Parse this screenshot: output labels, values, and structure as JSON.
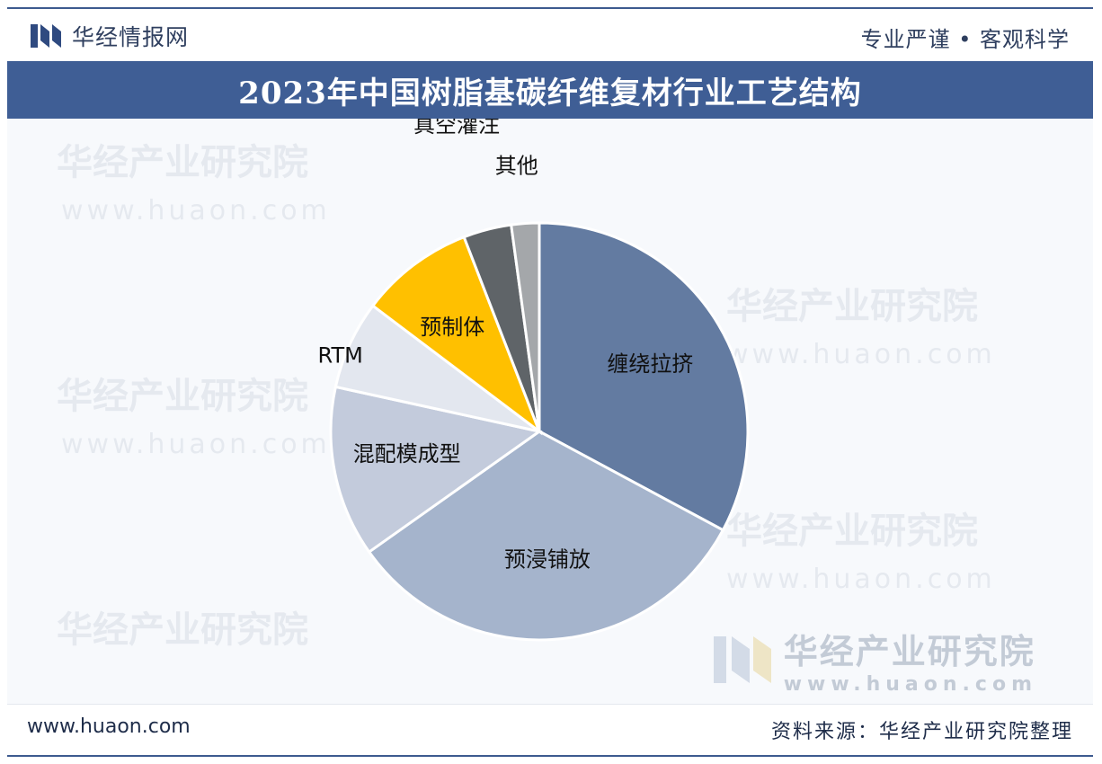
{
  "header": {
    "brand": "华经情报网",
    "slogan": "专业严谨 • 客观科学"
  },
  "title": "2023年中国树脂基碳纤维复材行业工艺结构",
  "watermark": {
    "name": "华经产业研究院",
    "url": "www.huaon.com"
  },
  "footer": {
    "url": "www.huaon.com",
    "source": "资料来源：华经产业研究院整理"
  },
  "colors": {
    "title_band": "#3f5e95",
    "slice_1": "#637ba1",
    "slice_2": "#a5b4cc",
    "slice_3": "#c3cbdc",
    "slice_4": "#e3e7ef",
    "slice_5": "#ffc000",
    "slice_6": "#5f6468",
    "slice_7": "#a4a7aa"
  },
  "chart_data": {
    "type": "pie",
    "title": "2023年中国树脂基碳纤维复材行业工艺结构",
    "start_angle_deg": 0,
    "direction": "clockwise",
    "slices": [
      {
        "label": "缠绕拉挤",
        "value": 33.5
      },
      {
        "label": "预浸铺放",
        "value": 33.0
      },
      {
        "label": "混配模成型",
        "value": 13.5
      },
      {
        "label": "RTM",
        "value": 7.0
      },
      {
        "label": "预制体",
        "value": 9.0
      },
      {
        "label": "真空灌注",
        "value": 3.8
      },
      {
        "label": "其他",
        "value": 2.2
      }
    ],
    "legend": "none"
  }
}
